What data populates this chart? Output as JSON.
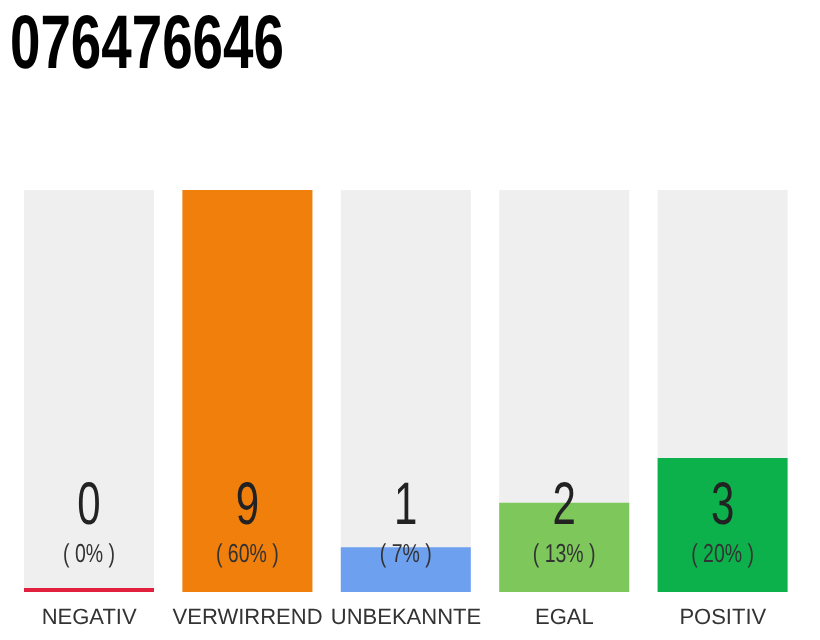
{
  "chart_data": {
    "type": "bar",
    "title": "076476646",
    "categories": [
      "NEGATIV",
      "VERWIRREND",
      "UNBEKANNTE",
      "EGAL",
      "POSITIV"
    ],
    "values": [
      0,
      9,
      1,
      2,
      3
    ],
    "colors": [
      "#e0203c",
      "#f07f0c",
      "#6ea0f0",
      "#7dc75b",
      "#0db14b"
    ],
    "tick_labels": "x",
    "data_labels": true,
    "annotations": [
      "( 0% )",
      "( 60% )",
      "( 7% )",
      "( 13% )",
      "( 20% )"
    ]
  }
}
